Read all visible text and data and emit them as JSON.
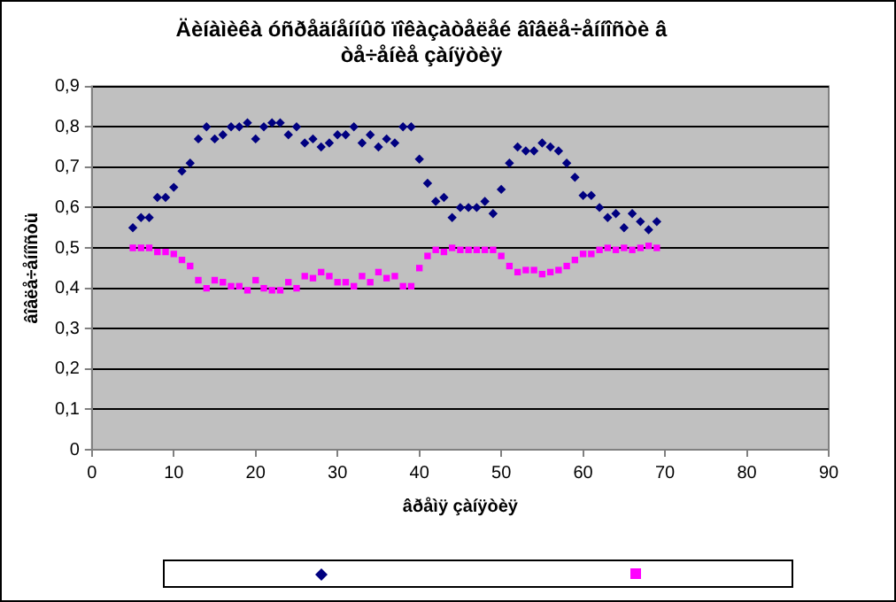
{
  "chart_data": {
    "type": "scatter",
    "title": "Äèíàìèêà óñðåäíåííûõ ïîêàçàòåëåé âîâëå÷åííîñòè â òå÷åíèå çàíÿòèÿ",
    "xlabel": "âðåìÿ çàíÿòèÿ",
    "ylabel": "âîâëå÷åííîñòü",
    "x": [
      5,
      6,
      7,
      8,
      9,
      10,
      11,
      12,
      13,
      14,
      15,
      16,
      17,
      18,
      19,
      20,
      21,
      22,
      23,
      24,
      25,
      26,
      27,
      28,
      29,
      30,
      31,
      32,
      33,
      34,
      35,
      36,
      37,
      38,
      39,
      40,
      41,
      42,
      43,
      44,
      45,
      46,
      47,
      48,
      49,
      50,
      51,
      52,
      53,
      54,
      55,
      56,
      57,
      58,
      59,
      60,
      61,
      62,
      63,
      64,
      65,
      66,
      67,
      68,
      69
    ],
    "series": [
      {
        "color": "#000080",
        "marker": "diamond",
        "values": [
          0.55,
          0.575,
          0.575,
          0.625,
          0.625,
          0.65,
          0.69,
          0.71,
          0.77,
          0.8,
          0.77,
          0.78,
          0.8,
          0.8,
          0.81,
          0.77,
          0.8,
          0.81,
          0.81,
          0.78,
          0.8,
          0.76,
          0.77,
          0.75,
          0.76,
          0.78,
          0.78,
          0.8,
          0.76,
          0.78,
          0.75,
          0.77,
          0.76,
          0.8,
          0.8,
          0.72,
          0.66,
          0.615,
          0.625,
          0.575,
          0.6,
          0.6,
          0.6,
          0.615,
          0.585,
          0.645,
          0.71,
          0.75,
          0.74,
          0.74,
          0.76,
          0.75,
          0.74,
          0.71,
          0.675,
          0.63,
          0.63,
          0.6,
          0.575,
          0.585,
          0.55,
          0.585,
          0.565,
          0.545,
          0.565
        ]
      },
      {
        "color": "#ff00ff",
        "marker": "square",
        "values": [
          0.5,
          0.5,
          0.5,
          0.49,
          0.49,
          0.485,
          0.47,
          0.455,
          0.42,
          0.4,
          0.42,
          0.415,
          0.405,
          0.405,
          0.395,
          0.42,
          0.4,
          0.395,
          0.395,
          0.415,
          0.4,
          0.43,
          0.425,
          0.44,
          0.43,
          0.415,
          0.415,
          0.405,
          0.43,
          0.415,
          0.44,
          0.425,
          0.43,
          0.405,
          0.405,
          0.45,
          0.48,
          0.495,
          0.49,
          0.5,
          0.495,
          0.495,
          0.495,
          0.495,
          0.495,
          0.48,
          0.455,
          0.44,
          0.445,
          0.445,
          0.435,
          0.44,
          0.445,
          0.455,
          0.47,
          0.485,
          0.485,
          0.495,
          0.5,
          0.495,
          0.5,
          0.495,
          0.5,
          0.505,
          0.5
        ]
      }
    ],
    "xlim": [
      0,
      90
    ],
    "xticks": [
      0,
      10,
      20,
      30,
      40,
      50,
      60,
      70,
      80,
      90
    ],
    "ylim": [
      0,
      0.9
    ],
    "yticks": [
      0,
      {
        "value": 0.1,
        "label": "0,1"
      },
      {
        "value": 0.2,
        "label": "0,2"
      },
      {
        "value": 0.3,
        "label": "0,3"
      },
      {
        "value": 0.4,
        "label": "0,4"
      },
      {
        "value": 0.5,
        "label": "0,5"
      },
      {
        "value": 0.6,
        "label": "0,6"
      },
      {
        "value": 0.7,
        "label": "0,7"
      },
      {
        "value": 0.8,
        "label": "0,8"
      },
      {
        "value": 0.9,
        "label": "0,9"
      }
    ],
    "grid": "y"
  }
}
